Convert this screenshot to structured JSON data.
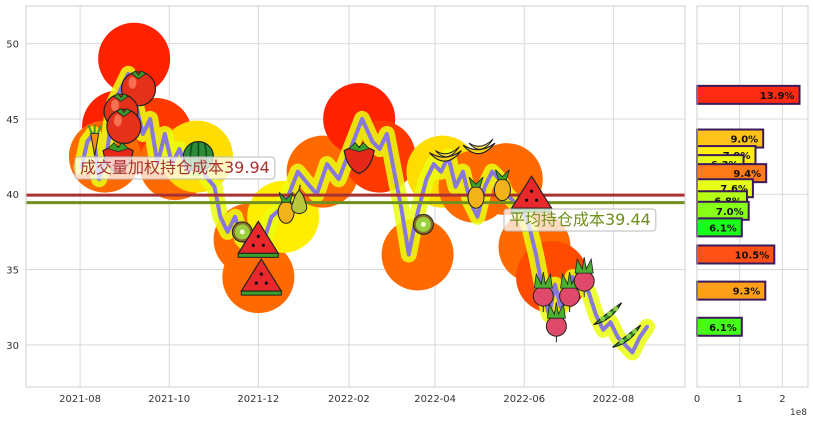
{
  "chart_data": [
    {
      "type": "line",
      "title": "",
      "xlabel": "",
      "ylabel": "",
      "ylim": [
        27.2,
        52.5
      ],
      "y_ticks": [
        30,
        35,
        40,
        45,
        50
      ],
      "x_range": [
        "2021-06-25",
        "2022-09-19"
      ],
      "x_ticks": [
        "2021-08",
        "2021-10",
        "2021-12",
        "2022-02",
        "2022-04",
        "2022-06",
        "2022-08"
      ],
      "grid": true,
      "series": [
        {
          "color": "#8877dd",
          "points": [
            [
              "2021-08-02",
              41.8
            ],
            [
              "2021-08-06",
              43.5
            ],
            [
              "2021-08-10",
              44.0
            ],
            [
              "2021-08-14",
              41.0
            ],
            [
              "2021-08-19",
              42.5
            ],
            [
              "2021-08-24",
              46.0
            ],
            [
              "2021-08-29",
              47.0
            ],
            [
              "2021-09-03",
              48.0
            ],
            [
              "2021-09-08",
              46.0
            ],
            [
              "2021-09-13",
              44.0
            ],
            [
              "2021-09-18",
              45.0
            ],
            [
              "2021-09-23",
              42.0
            ],
            [
              "2021-09-28",
              44.0
            ],
            [
              "2021-10-03",
              42.0
            ],
            [
              "2021-10-08",
              43.0
            ],
            [
              "2021-10-14",
              41.5
            ],
            [
              "2021-10-20",
              42.5
            ],
            [
              "2021-10-26",
              41.2
            ],
            [
              "2021-11-01",
              40.5
            ],
            [
              "2021-11-05",
              38.5
            ],
            [
              "2021-11-10",
              37.5
            ],
            [
              "2021-11-15",
              38.5
            ],
            [
              "2021-11-20",
              37.0
            ],
            [
              "2021-11-25",
              36.5
            ],
            [
              "2021-11-30",
              37.5
            ],
            [
              "2021-12-05",
              37.0
            ],
            [
              "2021-12-10",
              38.5
            ],
            [
              "2021-12-16",
              39.0
            ],
            [
              "2021-12-22",
              40.0
            ],
            [
              "2021-12-28",
              41.5
            ],
            [
              "2022-01-03",
              40.8
            ],
            [
              "2022-01-10",
              40.0
            ],
            [
              "2022-01-17",
              42.0
            ],
            [
              "2022-01-25",
              41.0
            ],
            [
              "2022-02-02",
              43.0
            ],
            [
              "2022-02-10",
              45.0
            ],
            [
              "2022-02-17",
              43.5
            ],
            [
              "2022-02-22",
              43.0
            ],
            [
              "2022-02-27",
              44.0
            ],
            [
              "2022-03-04",
              41.5
            ],
            [
              "2022-03-09",
              39.0
            ],
            [
              "2022-03-14",
              36.0
            ],
            [
              "2022-03-18",
              38.0
            ],
            [
              "2022-03-22",
              39.5
            ],
            [
              "2022-03-26",
              41.0
            ],
            [
              "2022-03-31",
              42.0
            ],
            [
              "2022-04-05",
              41.5
            ],
            [
              "2022-04-10",
              42.5
            ],
            [
              "2022-04-15",
              40.5
            ],
            [
              "2022-04-20",
              41.5
            ],
            [
              "2022-04-25",
              39.5
            ],
            [
              "2022-04-30",
              38.5
            ],
            [
              "2022-05-05",
              40.5
            ],
            [
              "2022-05-10",
              41.5
            ],
            [
              "2022-05-15",
              41.0
            ],
            [
              "2022-05-20",
              40.0
            ],
            [
              "2022-05-25",
              39.5
            ],
            [
              "2022-05-30",
              39.0
            ],
            [
              "2022-06-04",
              38.0
            ],
            [
              "2022-06-09",
              36.0
            ],
            [
              "2022-06-14",
              33.5
            ],
            [
              "2022-06-18",
              32.0
            ],
            [
              "2022-06-22",
              34.0
            ],
            [
              "2022-06-26",
              32.5
            ],
            [
              "2022-06-30",
              33.0
            ],
            [
              "2022-07-04",
              34.5
            ],
            [
              "2022-07-09",
              34.0
            ],
            [
              "2022-07-15",
              33.5
            ],
            [
              "2022-07-20",
              32.0
            ],
            [
              "2022-07-25",
              31.0
            ],
            [
              "2022-07-30",
              31.5
            ],
            [
              "2022-08-04",
              30.5
            ],
            [
              "2022-08-09",
              30.0
            ],
            [
              "2022-08-14",
              29.5
            ],
            [
              "2022-08-19",
              30.5
            ],
            [
              "2022-08-24",
              31.2
            ]
          ]
        }
      ],
      "reference_lines": [
        {
          "value": 39.94,
          "label": "成交量加权持仓成本39.94",
          "color": "#a83232",
          "label_color": "#a83232"
        },
        {
          "value": 39.44,
          "label": "平均持仓成本39.44",
          "color": "#6f8f1f",
          "label_color": "#6f8f1f"
        }
      ],
      "blobs": [
        {
          "date": "2021-09-07",
          "y": 49.0,
          "color": "#ff2200"
        },
        {
          "date": "2021-08-27",
          "y": 44.5,
          "color": "#ff2200"
        },
        {
          "date": "2021-09-22",
          "y": 44.0,
          "color": "#ff3a00"
        },
        {
          "date": "2021-08-18",
          "y": 42.5,
          "color": "#ff6a00"
        },
        {
          "date": "2021-10-05",
          "y": 42.0,
          "color": "#ff6a00"
        },
        {
          "date": "2021-10-20",
          "y": 42.5,
          "color": "#ffdd00"
        },
        {
          "date": "2021-11-25",
          "y": 37.0,
          "color": "#ff6a00"
        },
        {
          "date": "2021-12-01",
          "y": 34.5,
          "color": "#ff6a00"
        },
        {
          "date": "2021-12-18",
          "y": 38.5,
          "color": "#ffee00"
        },
        {
          "date": "2022-01-14",
          "y": 41.5,
          "color": "#ff6a00"
        },
        {
          "date": "2022-02-08",
          "y": 45.0,
          "color": "#ff2200"
        },
        {
          "date": "2022-02-22",
          "y": 42.5,
          "color": "#ff3a00"
        },
        {
          "date": "2022-03-20",
          "y": 36.0,
          "color": "#ff6a00"
        },
        {
          "date": "2022-04-06",
          "y": 41.5,
          "color": "#ffdd00"
        },
        {
          "date": "2022-04-28",
          "y": 40.5,
          "color": "#ff6a00"
        },
        {
          "date": "2022-05-20",
          "y": 41.0,
          "color": "#ff6a00"
        },
        {
          "date": "2022-06-08",
          "y": 36.5,
          "color": "#ff6a00"
        },
        {
          "date": "2022-06-20",
          "y": 34.5,
          "color": "#ff4a00"
        }
      ],
      "fruit_icons": [
        {
          "kind": "tomato",
          "date": "2021-09-10",
          "y": 47.0
        },
        {
          "kind": "tomato",
          "date": "2021-08-29",
          "y": 45.5
        },
        {
          "kind": "apple",
          "date": "2021-08-31",
          "y": 44.5
        },
        {
          "kind": "carrot",
          "date": "2021-08-11",
          "y": 43.5
        },
        {
          "kind": "strawberry",
          "date": "2021-08-27",
          "y": 42.5
        },
        {
          "kind": "melon",
          "date": "2021-10-21",
          "y": 42.5
        },
        {
          "kind": "kiwi",
          "date": "2021-11-20",
          "y": 37.5
        },
        {
          "kind": "watermelon",
          "date": "2021-12-01",
          "y": 37.0
        },
        {
          "kind": "watermelon",
          "date": "2021-12-03",
          "y": 34.5
        },
        {
          "kind": "pineapple",
          "date": "2021-12-20",
          "y": 39.0
        },
        {
          "kind": "pear",
          "date": "2021-12-29",
          "y": 39.5
        },
        {
          "kind": "strawberry",
          "date": "2022-02-08",
          "y": 42.5
        },
        {
          "kind": "kiwi",
          "date": "2022-03-24",
          "y": 38.0
        },
        {
          "kind": "banana",
          "date": "2022-04-08",
          "y": 42.5
        },
        {
          "kind": "banana",
          "date": "2022-05-01",
          "y": 43.0
        },
        {
          "kind": "pineapple",
          "date": "2022-04-29",
          "y": 40.0
        },
        {
          "kind": "pineapple",
          "date": "2022-05-17",
          "y": 40.5
        },
        {
          "kind": "watermelon",
          "date": "2022-06-06",
          "y": 40.0
        },
        {
          "kind": "radish",
          "date": "2022-06-14",
          "y": 33.5
        },
        {
          "kind": "radish",
          "date": "2022-07-02",
          "y": 33.5
        },
        {
          "kind": "radish",
          "date": "2022-07-12",
          "y": 34.5
        },
        {
          "kind": "radish",
          "date": "2022-06-23",
          "y": 31.5
        },
        {
          "kind": "peas",
          "date": "2022-07-28",
          "y": 32.0
        },
        {
          "kind": "peas",
          "date": "2022-08-10",
          "y": 30.5
        }
      ]
    },
    {
      "type": "bar",
      "orientation": "horizontal",
      "title": "",
      "xlabel": "",
      "ylabel": "",
      "xlim": [
        0,
        2.6
      ],
      "x_ticks": [
        0,
        1,
        2
      ],
      "x_scale_label": "1e8",
      "ylim": [
        27.2,
        52.5
      ],
      "grid": true,
      "bars": [
        {
          "y": 46.6,
          "value": 2.4,
          "label": "13.9%",
          "color": "#ff2a12"
        },
        {
          "y": 43.7,
          "value": 1.55,
          "label": "9.0%",
          "color": "#ffc21a"
        },
        {
          "y": 42.6,
          "value": 1.37,
          "label": "7.9%",
          "color": "#ffee10"
        },
        {
          "y": 42.0,
          "value": 1.09,
          "label": "6.3%",
          "color": "#e8ff18"
        },
        {
          "y": 41.4,
          "value": 1.62,
          "label": "9.4%",
          "color": "#ff7a18"
        },
        {
          "y": 40.4,
          "value": 1.31,
          "label": "7.6%",
          "color": "#e8ff18"
        },
        {
          "y": 39.6,
          "value": 1.17,
          "label": "6.8%",
          "color": "#b8ff18"
        },
        {
          "y": 38.9,
          "value": 1.21,
          "label": "7.0%",
          "color": "#88ff18"
        },
        {
          "y": 37.8,
          "value": 1.05,
          "label": "6.1%",
          "color": "#18ff18"
        },
        {
          "y": 36.0,
          "value": 1.81,
          "label": "10.5%",
          "color": "#ff5016"
        },
        {
          "y": 33.6,
          "value": 1.6,
          "label": "9.3%",
          "color": "#ffa018"
        },
        {
          "y": 31.2,
          "value": 1.05,
          "label": "6.1%",
          "color": "#44ff18"
        }
      ]
    }
  ]
}
